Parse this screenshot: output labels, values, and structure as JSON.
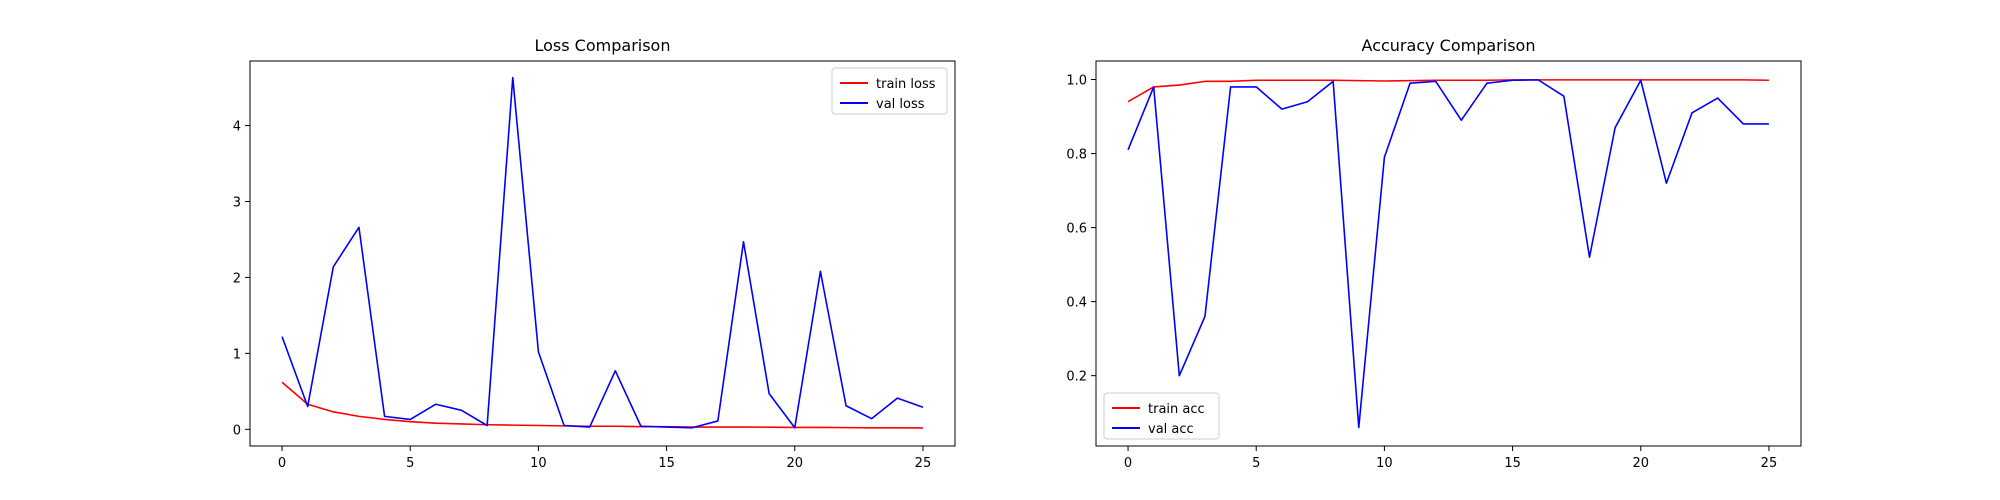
{
  "chart_data": [
    {
      "type": "line",
      "title": "Loss Comparison",
      "xlabel": "",
      "ylabel": "",
      "xlim": [
        -1.25,
        26.25
      ],
      "ylim": [
        -0.22,
        4.85
      ],
      "xticks": [
        0,
        5,
        10,
        15,
        20,
        25
      ],
      "yticks": [
        0,
        1,
        2,
        3,
        4
      ],
      "grid": false,
      "legend_position": "top-right",
      "x": [
        0,
        1,
        2,
        3,
        4,
        5,
        6,
        7,
        8,
        9,
        10,
        11,
        12,
        13,
        14,
        15,
        16,
        17,
        18,
        19,
        20,
        21,
        22,
        23,
        24,
        25
      ],
      "series": [
        {
          "name": "train loss",
          "color": "#ff0000",
          "values": [
            0.62,
            0.33,
            0.23,
            0.17,
            0.13,
            0.1,
            0.08,
            0.07,
            0.06,
            0.055,
            0.05,
            0.045,
            0.04,
            0.04,
            0.035,
            0.035,
            0.03,
            0.03,
            0.03,
            0.028,
            0.025,
            0.025,
            0.022,
            0.02,
            0.02,
            0.018
          ]
        },
        {
          "name": "val loss",
          "color": "#0000ff",
          "values": [
            1.22,
            0.3,
            2.14,
            2.66,
            0.17,
            0.13,
            0.33,
            0.25,
            0.05,
            4.63,
            1.02,
            0.05,
            0.03,
            0.77,
            0.04,
            0.03,
            0.02,
            0.11,
            2.47,
            0.47,
            0.02,
            2.08,
            0.31,
            0.14,
            0.41,
            0.29
          ]
        }
      ]
    },
    {
      "type": "line",
      "title": "Accuracy Comparison",
      "xlabel": "",
      "ylabel": "",
      "xlim": [
        -1.25,
        26.25
      ],
      "ylim": [
        0.01,
        1.05
      ],
      "xticks": [
        0,
        5,
        10,
        15,
        20,
        25
      ],
      "yticks": [
        0.2,
        0.4,
        0.6,
        0.8,
        1.0
      ],
      "ytick_labels": [
        "0.2",
        "0.4",
        "0.6",
        "0.8",
        "1.0"
      ],
      "grid": false,
      "legend_position": "bottom-left",
      "x": [
        0,
        1,
        2,
        3,
        4,
        5,
        6,
        7,
        8,
        9,
        10,
        11,
        12,
        13,
        14,
        15,
        16,
        17,
        18,
        19,
        20,
        21,
        22,
        23,
        24,
        25
      ],
      "series": [
        {
          "name": "train acc",
          "color": "#ff0000",
          "values": [
            0.94,
            0.98,
            0.985,
            0.995,
            0.995,
            0.998,
            0.998,
            0.998,
            0.998,
            0.997,
            0.996,
            0.997,
            0.998,
            0.998,
            0.998,
            0.999,
            0.999,
            0.999,
            0.999,
            0.999,
            0.999,
            0.999,
            0.999,
            0.999,
            0.999,
            0.998
          ]
        },
        {
          "name": "val acc",
          "color": "#0000ff",
          "values": [
            0.81,
            0.98,
            0.2,
            0.36,
            0.98,
            0.98,
            0.92,
            0.94,
            0.995,
            0.06,
            0.79,
            0.99,
            0.995,
            0.89,
            0.99,
            0.998,
            0.999,
            0.955,
            0.52,
            0.87,
            0.998,
            0.72,
            0.91,
            0.95,
            0.88,
            0.88
          ]
        }
      ]
    }
  ]
}
